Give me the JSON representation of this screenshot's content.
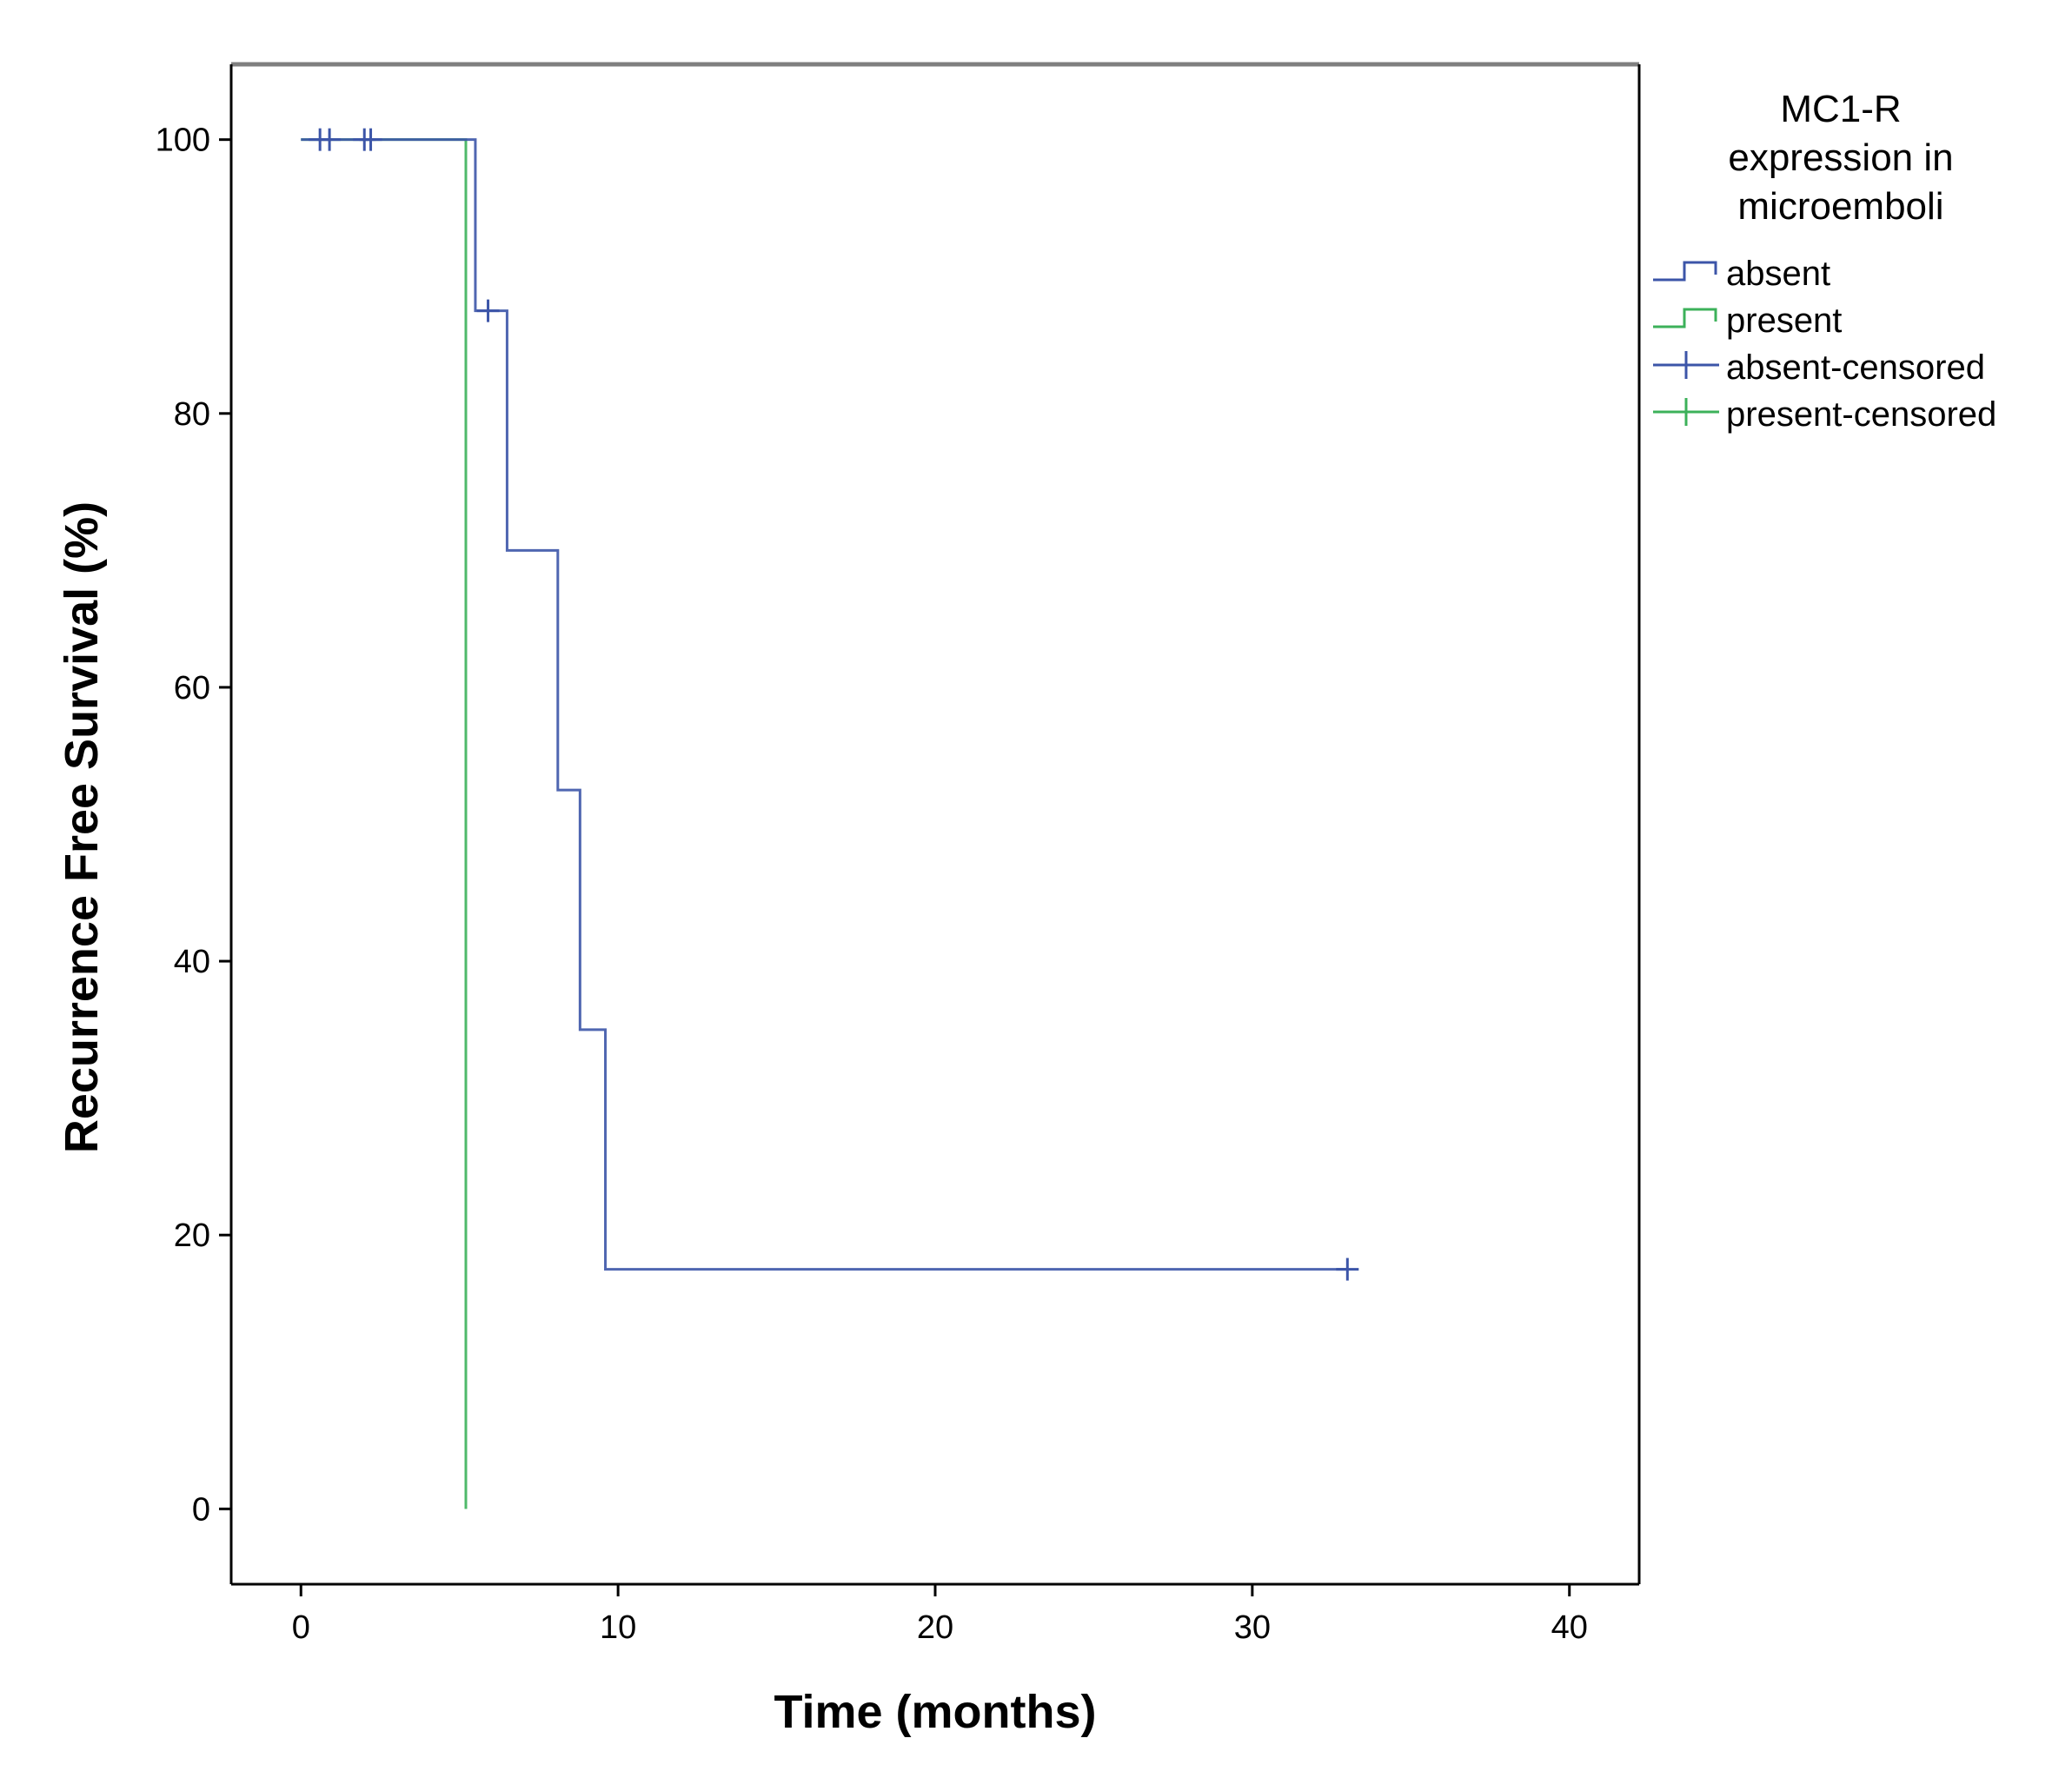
{
  "chart_data": {
    "type": "line",
    "subtype": "kaplan-meier step",
    "xlabel": "Time (months)",
    "ylabel": "Recurrence Free Survival (%)",
    "xlim": [
      -2.2,
      42.2
    ],
    "ylim": [
      -5.5,
      105.5
    ],
    "xticks": [
      0,
      10,
      20,
      30,
      40
    ],
    "yticks": [
      0,
      20,
      40,
      60,
      80,
      100
    ],
    "grid": false,
    "legend": {
      "title": [
        "MC1-R",
        "expression in",
        "microemboli"
      ],
      "placement": "right",
      "entries": [
        {
          "label": "absent",
          "kind": "line",
          "color": "#3c55a8"
        },
        {
          "label": "present",
          "kind": "line",
          "color": "#3cb15a"
        },
        {
          "label": "absent-censored",
          "kind": "censor",
          "color": "#3c55a8"
        },
        {
          "label": "present-censored",
          "kind": "censor",
          "color": "#3cb15a"
        }
      ]
    },
    "series": [
      {
        "name": "absent",
        "color": "#3c55a8",
        "steps": [
          {
            "x": 0.0,
            "y": 100
          },
          {
            "x": 5.5,
            "y": 87.5
          },
          {
            "x": 6.5,
            "y": 70
          },
          {
            "x": 8.1,
            "y": 52.5
          },
          {
            "x": 8.8,
            "y": 35
          },
          {
            "x": 9.6,
            "y": 17.5
          }
        ],
        "end_x": 33.0,
        "censored": [
          {
            "x": 0.6,
            "y": 100
          },
          {
            "x": 0.9,
            "y": 100
          },
          {
            "x": 2.0,
            "y": 100
          },
          {
            "x": 2.2,
            "y": 100
          },
          {
            "x": 5.9,
            "y": 87.5
          },
          {
            "x": 33.0,
            "y": 17.5
          }
        ]
      },
      {
        "name": "present",
        "color": "#3cb15a",
        "steps": [
          {
            "x": 0.0,
            "y": 100
          },
          {
            "x": 5.2,
            "y": 0
          }
        ],
        "end_x": 5.2,
        "censored": []
      }
    ]
  }
}
